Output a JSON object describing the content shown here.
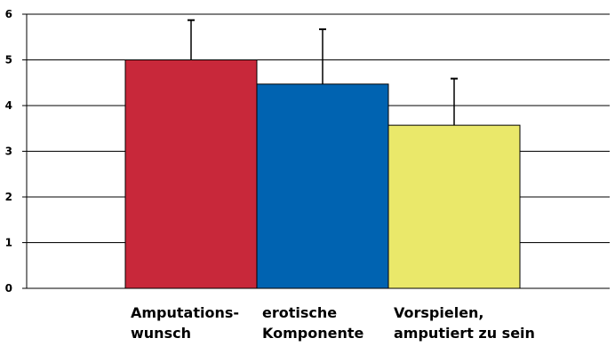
{
  "chart_data": {
    "type": "bar",
    "categories": [
      [
        "Amputations-",
        "wunsch"
      ],
      [
        "erotische",
        "Komponente"
      ],
      [
        "Vorspielen,",
        "amputiert zu sein"
      ]
    ],
    "series": [
      {
        "values": [
          5.0,
          4.47,
          3.57
        ],
        "errors": [
          0.87,
          1.2,
          1.02
        ],
        "colors": [
          "#c8283a",
          "#0063b1",
          "#eae86a"
        ]
      }
    ],
    "yticks": [
      "0",
      "1",
      "2",
      "3",
      "4",
      "5",
      "6"
    ],
    "ylim": [
      0,
      6
    ],
    "grid": true,
    "title": "",
    "xlabel": "",
    "ylabel": ""
  }
}
